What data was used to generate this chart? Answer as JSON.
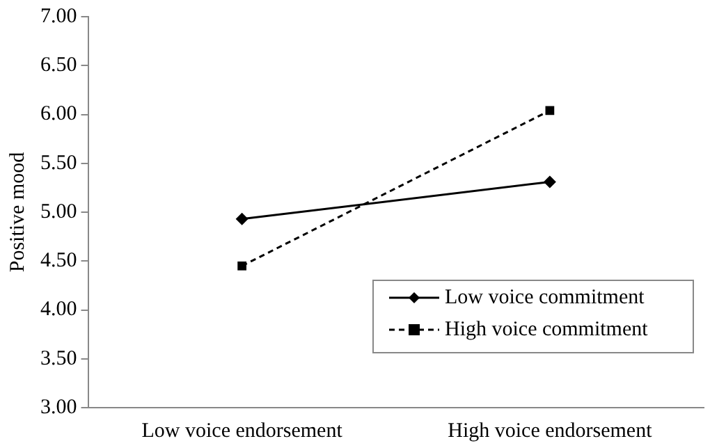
{
  "chart_data": {
    "type": "line",
    "ylabel": "Positive mood",
    "categories": [
      "Low voice endorsement",
      "High voice endorsement"
    ],
    "series": [
      {
        "name": "Low voice commitment",
        "color": "#000000",
        "values": [
          4.93,
          5.31
        ],
        "marker": "diamond",
        "line_style": "solid"
      },
      {
        "name": "High voice commitment",
        "color": "#000000",
        "values": [
          4.45,
          6.04
        ],
        "marker": "square",
        "line_style": "dashed"
      }
    ],
    "ylim": [
      3,
      7
    ],
    "yticks": [
      {
        "value": 3,
        "label": "3.00"
      },
      {
        "value": 3.5,
        "label": "3.50"
      },
      {
        "value": 4,
        "label": "4.00"
      },
      {
        "value": 4.5,
        "label": "4.50"
      },
      {
        "value": 5,
        "label": "5.00"
      },
      {
        "value": 5.5,
        "label": "5.50"
      },
      {
        "value": 6,
        "label": "6.00"
      },
      {
        "value": 6.5,
        "label": "6.50"
      },
      {
        "value": 7,
        "label": "7.00"
      }
    ],
    "grid": false,
    "legend": "bottom right"
  }
}
